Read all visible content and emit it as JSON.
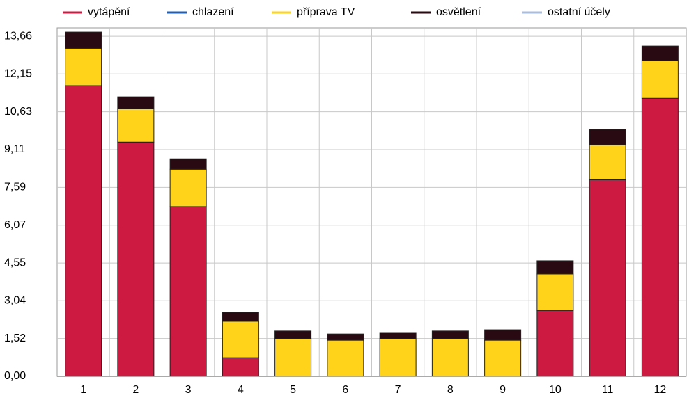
{
  "chart_data": {
    "type": "bar",
    "stacked": true,
    "categories": [
      "1",
      "2",
      "3",
      "4",
      "5",
      "6",
      "7",
      "8",
      "9",
      "10",
      "11",
      "12"
    ],
    "series": [
      {
        "name": "vytápění",
        "color": "#cc1a40",
        "values": [
          11.68,
          9.41,
          6.82,
          0.75,
          0,
          0,
          0,
          0,
          0,
          2.65,
          7.9,
          11.17
        ]
      },
      {
        "name": "chlazení",
        "color": "#1f5fb5",
        "values": [
          0,
          0,
          0,
          0,
          0,
          0,
          0,
          0,
          0,
          0,
          0,
          0
        ]
      },
      {
        "name": "příprava TV",
        "color": "#ffd31a",
        "values": [
          1.5,
          1.34,
          1.5,
          1.46,
          1.51,
          1.45,
          1.51,
          1.51,
          1.45,
          1.46,
          1.4,
          1.51
        ]
      },
      {
        "name": "osvětlení",
        "color": "#2a0a12",
        "values": [
          0.65,
          0.48,
          0.42,
          0.36,
          0.31,
          0.25,
          0.25,
          0.31,
          0.42,
          0.53,
          0.62,
          0.59
        ]
      },
      {
        "name": "ostatní účely",
        "color": "#a9bedf",
        "values": [
          0,
          0,
          0,
          0,
          0,
          0,
          0,
          0,
          0,
          0,
          0,
          0
        ]
      }
    ],
    "ylim": [
      0,
      14
    ],
    "yticks": [
      {
        "value": 0,
        "label": "0,00"
      },
      {
        "value": 1.52,
        "label": "1,52"
      },
      {
        "value": 3.04,
        "label": "3,04"
      },
      {
        "value": 4.55,
        "label": "4,55"
      },
      {
        "value": 6.07,
        "label": "6,07"
      },
      {
        "value": 7.59,
        "label": "7,59"
      },
      {
        "value": 9.11,
        "label": "9,11"
      },
      {
        "value": 10.63,
        "label": "10,63"
      },
      {
        "value": 12.15,
        "label": "12,15"
      },
      {
        "value": 13.66,
        "label": "13,66"
      }
    ],
    "grid": true,
    "legend": "top"
  }
}
